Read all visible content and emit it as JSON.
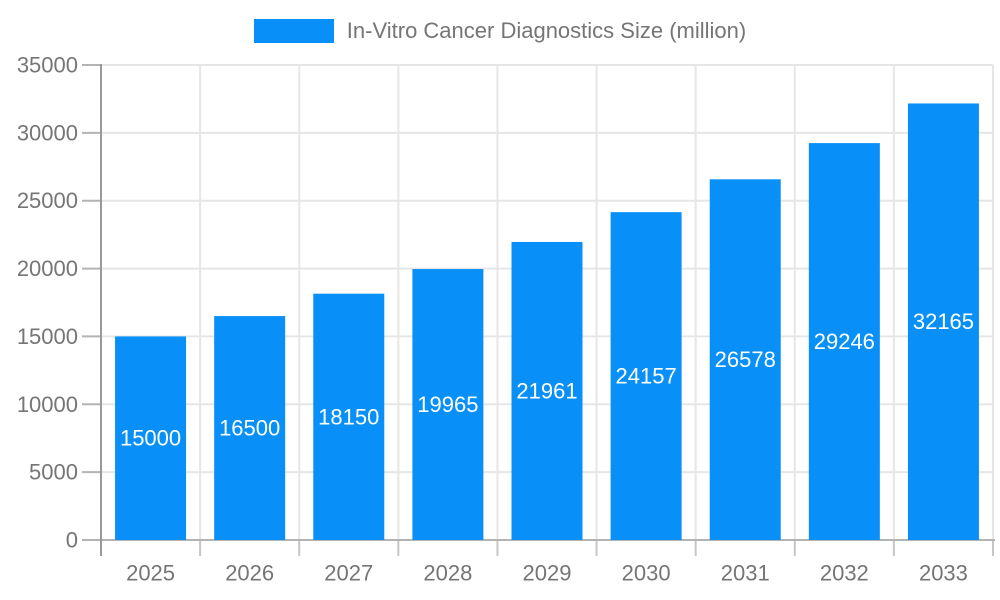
{
  "chart_data": {
    "type": "bar",
    "title": "",
    "xlabel": "",
    "ylabel": "",
    "legend_position": "top",
    "grid": true,
    "categories": [
      "2025",
      "2026",
      "2027",
      "2028",
      "2029",
      "2030",
      "2031",
      "2032",
      "2033"
    ],
    "series": [
      {
        "name": "In-Vitro Cancer Diagnostics Size (million)",
        "values": [
          15000,
          16500,
          18150,
          19965,
          21961,
          24157,
          26578,
          29246,
          32165
        ]
      }
    ],
    "ylim": [
      0,
      35000
    ],
    "yticks": [
      0,
      5000,
      10000,
      15000,
      20000,
      25000,
      30000,
      35000
    ],
    "colors": {
      "bar": "#0890f8",
      "bar_label": "#ffffff",
      "axis_text": "#757575",
      "gridline": "#e6e6e6",
      "axis_line": "#999999",
      "baseline": "#b3b3b3",
      "x_tick": "#c6c6c6",
      "background": "#ffffff"
    }
  }
}
